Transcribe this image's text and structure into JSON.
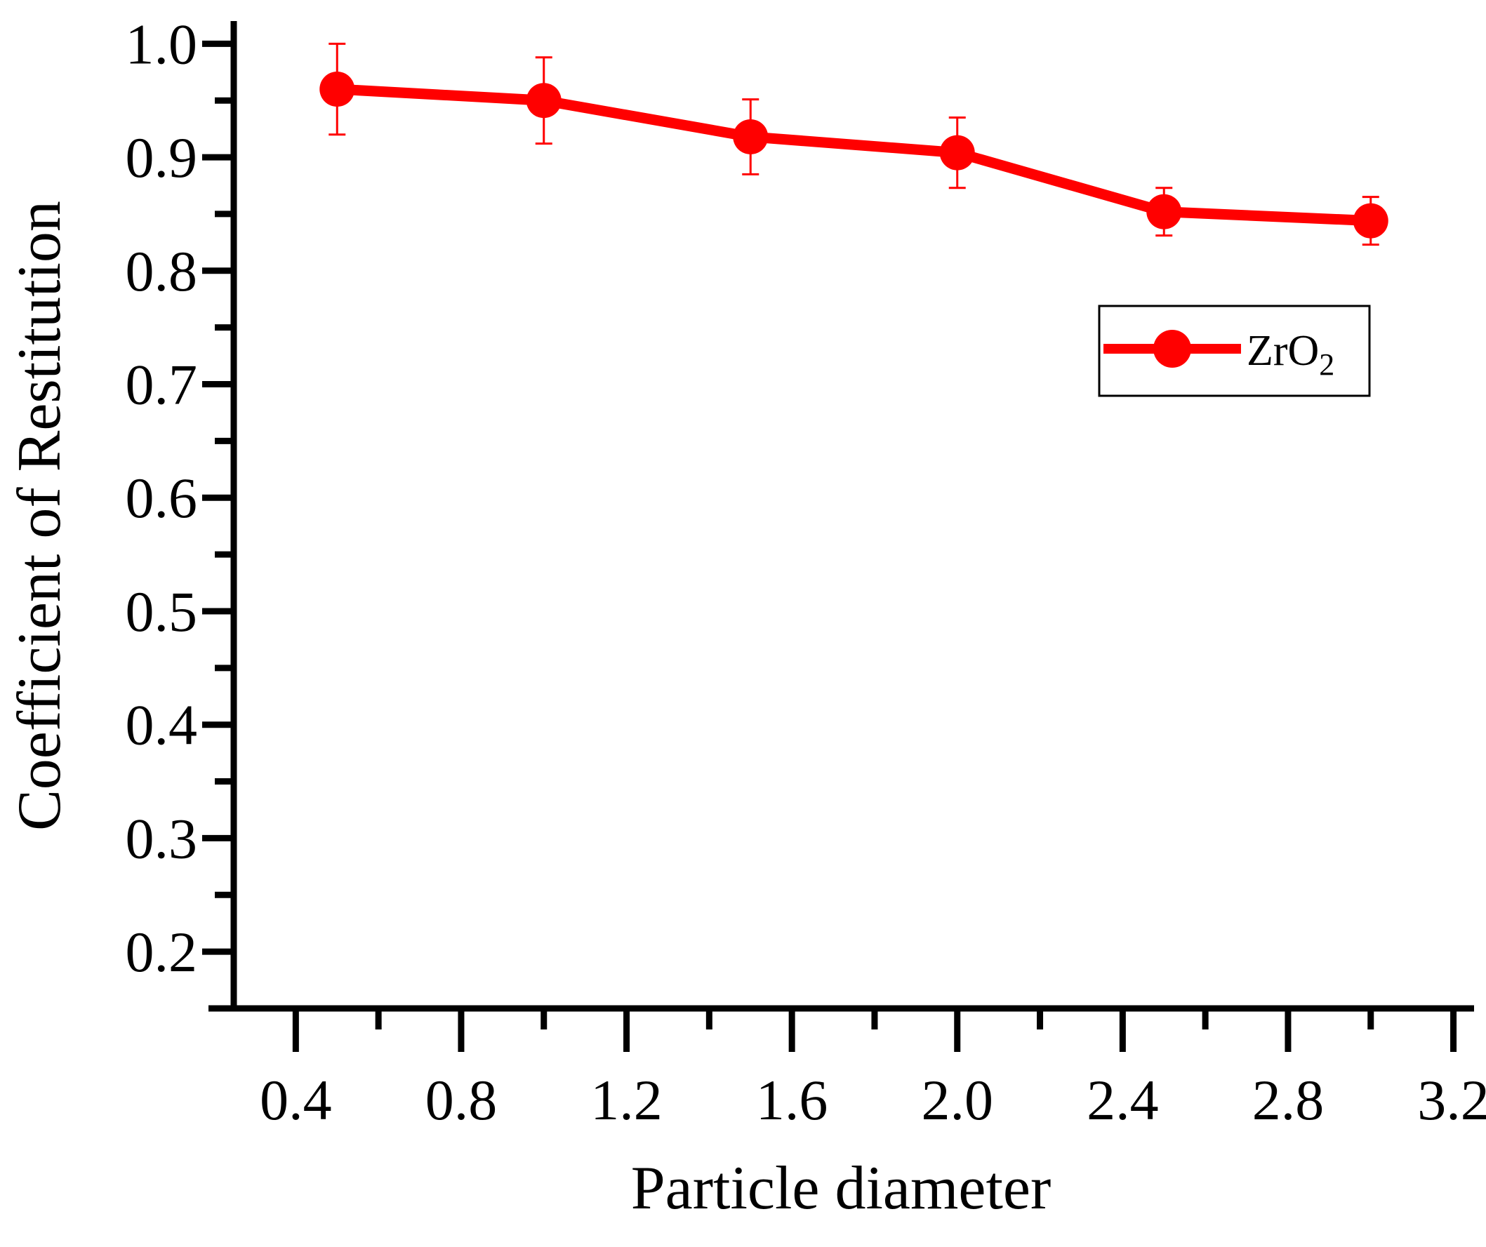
{
  "chart_data": {
    "type": "line",
    "xlabel": "Particle diameter",
    "ylabel": "Coefficient of Restitution",
    "xlim": [
      0.25,
      3.25
    ],
    "ylim": [
      0.15,
      1.02
    ],
    "x_ticks": [
      "0.4",
      "0.8",
      "1.2",
      "1.6",
      "2.0",
      "2.4",
      "2.8",
      "3.2"
    ],
    "y_ticks": [
      "0.2",
      "0.3",
      "0.4",
      "0.5",
      "0.6",
      "0.7",
      "0.8",
      "0.9",
      "1.0"
    ],
    "x_tick_values": [
      0.4,
      0.8,
      1.2,
      1.6,
      2.0,
      2.4,
      2.8,
      3.2
    ],
    "y_tick_values": [
      0.2,
      0.3,
      0.4,
      0.5,
      0.6,
      0.7,
      0.8,
      0.9,
      1.0
    ],
    "x_minor_ticks": [
      0.6,
      1.0,
      1.4,
      1.8,
      2.2,
      2.6,
      3.0
    ],
    "y_minor_ticks": [
      0.15,
      0.25,
      0.35,
      0.45,
      0.55,
      0.65,
      0.75,
      0.85,
      0.95
    ],
    "grid": false,
    "legend_position": "top-right",
    "series": [
      {
        "name": "ZrO",
        "name_subscript": "2",
        "color": "#ff0000",
        "marker": "circle",
        "x": [
          0.5,
          1.0,
          1.5,
          2.0,
          2.5,
          3.0
        ],
        "y": [
          0.96,
          0.95,
          0.918,
          0.904,
          0.852,
          0.844
        ],
        "error": [
          0.04,
          0.038,
          0.033,
          0.031,
          0.021,
          0.021
        ]
      }
    ]
  }
}
